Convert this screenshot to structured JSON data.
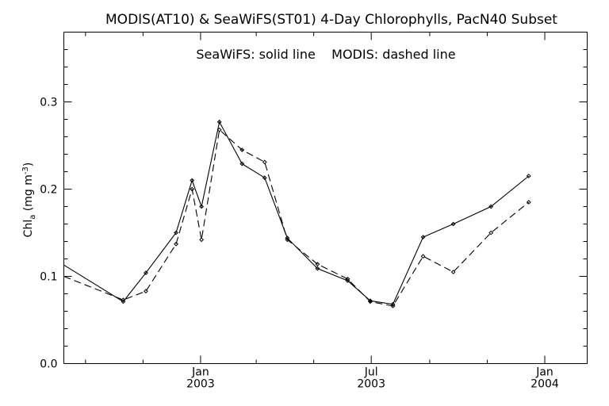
{
  "chart_data": {
    "type": "line",
    "title": "MODIS(AT10) & SeaWiFS(ST01) 4-Day Chlorophylls, PacN40 Subset",
    "subtitle": "SeaWiFS: solid line    MODIS: dashed line",
    "ylabel": "Chl",
    "ylabel_sub": "a",
    "ylabel_unit_pre": " (mg m",
    "ylabel_unit_sup": "-3",
    "ylabel_unit_post": ")",
    "xlim": [
      "2002-08-09",
      "2004-02-15"
    ],
    "ylim": [
      0,
      0.38
    ],
    "x_ticks": [
      {
        "date": "2003-01-01",
        "label_top": "Jan",
        "label_bottom": "2003"
      },
      {
        "date": "2003-07-01",
        "label_top": "Jul",
        "label_bottom": "2003"
      },
      {
        "date": "2004-01-01",
        "label_top": "Jan",
        "label_bottom": "2004"
      }
    ],
    "x_minor_ticks": [
      "2002-09-01",
      "2002-11-01",
      "2003-03-01",
      "2003-05-01",
      "2003-09-01",
      "2003-11-01"
    ],
    "y_ticks": [
      {
        "value": 0.0,
        "label": "0.0"
      },
      {
        "value": 0.1,
        "label": "0.1"
      },
      {
        "value": 0.2,
        "label": "0.2"
      },
      {
        "value": 0.3,
        "label": "0.3"
      }
    ],
    "series": [
      {
        "name": "SeaWiFS",
        "style": "solid",
        "color": "#000000",
        "points": [
          {
            "x": "2002-08-09",
            "y": 0.113
          },
          {
            "x": "2002-10-11",
            "y": 0.071
          },
          {
            "x": "2002-11-04",
            "y": 0.104
          },
          {
            "x": "2002-12-06",
            "y": 0.15
          },
          {
            "x": "2002-12-23",
            "y": 0.21
          },
          {
            "x": "2003-01-02",
            "y": 0.18
          },
          {
            "x": "2003-01-21",
            "y": 0.277
          },
          {
            "x": "2003-02-14",
            "y": 0.229
          },
          {
            "x": "2003-03-10",
            "y": 0.213
          },
          {
            "x": "2003-04-03",
            "y": 0.144
          },
          {
            "x": "2003-05-05",
            "y": 0.109
          },
          {
            "x": "2003-06-06",
            "y": 0.095
          },
          {
            "x": "2003-06-30",
            "y": 0.072
          },
          {
            "x": "2003-07-24",
            "y": 0.068
          },
          {
            "x": "2003-08-25",
            "y": 0.145
          },
          {
            "x": "2003-09-26",
            "y": 0.16
          },
          {
            "x": "2003-11-05",
            "y": 0.18
          },
          {
            "x": "2003-12-15",
            "y": 0.215
          }
        ]
      },
      {
        "name": "MODIS",
        "style": "dashed",
        "color": "#000000",
        "points": [
          {
            "x": "2002-08-09",
            "y": 0.1
          },
          {
            "x": "2002-10-11",
            "y": 0.073
          },
          {
            "x": "2002-11-04",
            "y": 0.083
          },
          {
            "x": "2002-12-06",
            "y": 0.137
          },
          {
            "x": "2002-12-23",
            "y": 0.2
          },
          {
            "x": "2003-01-02",
            "y": 0.142
          },
          {
            "x": "2003-01-21",
            "y": 0.268
          },
          {
            "x": "2003-02-14",
            "y": 0.245
          },
          {
            "x": "2003-03-10",
            "y": 0.231
          },
          {
            "x": "2003-04-03",
            "y": 0.142
          },
          {
            "x": "2003-05-05",
            "y": 0.114
          },
          {
            "x": "2003-06-06",
            "y": 0.097
          },
          {
            "x": "2003-06-30",
            "y": 0.071
          },
          {
            "x": "2003-07-24",
            "y": 0.066
          },
          {
            "x": "2003-08-25",
            "y": 0.123
          },
          {
            "x": "2003-09-26",
            "y": 0.105
          },
          {
            "x": "2003-11-05",
            "y": 0.15
          },
          {
            "x": "2003-12-15",
            "y": 0.185
          }
        ]
      }
    ]
  }
}
